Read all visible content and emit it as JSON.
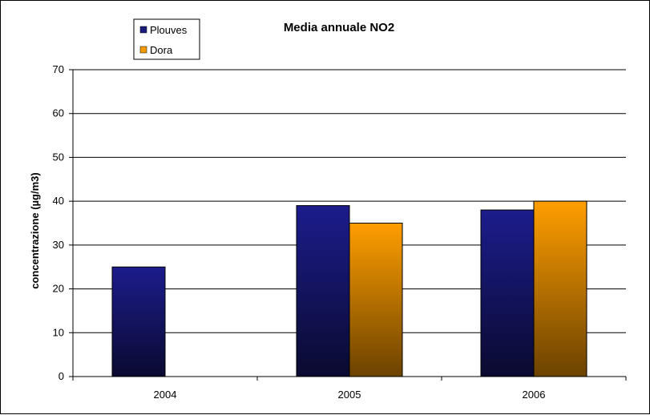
{
  "chart_data": {
    "type": "bar",
    "title": "Media annuale NO2",
    "xlabel": "",
    "ylabel": "concentrazione (µg/m3)",
    "categories": [
      "2004",
      "2005",
      "2006"
    ],
    "ylim": [
      0,
      70
    ],
    "yticks": [
      0,
      10,
      20,
      30,
      40,
      50,
      60,
      70
    ],
    "grid": true,
    "legend_position": "top-left",
    "series": [
      {
        "name": "Plouves",
        "values": [
          25,
          39,
          38
        ],
        "color": "#1a1a7a"
      },
      {
        "name": "Dora",
        "values": [
          null,
          35,
          40
        ],
        "color": "#f59a00"
      }
    ]
  }
}
